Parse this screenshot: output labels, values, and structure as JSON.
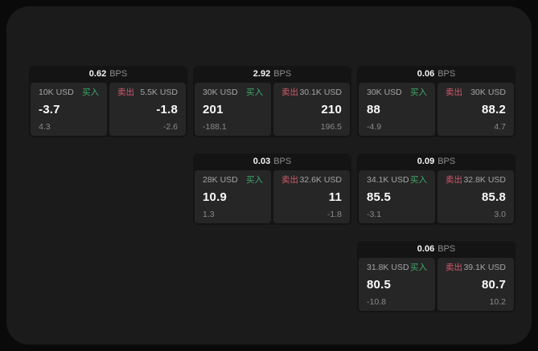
{
  "labels": {
    "bps": "BPS",
    "buy": "买入",
    "sell": "卖出"
  },
  "colors": {
    "buy_green": "#3fa96a",
    "sell_red": "#d25a6c",
    "panel_bg": "#1b1b1b",
    "card_bg": "#141414",
    "subpanel_bg": "#262626"
  },
  "cards": [
    {
      "bps": "0.62",
      "buy": {
        "amount": "10K USD",
        "value": "-3.7",
        "delta": "4.3"
      },
      "sell": {
        "amount": "5.5K USD",
        "value": "-1.8",
        "delta": "-2.6"
      }
    },
    {
      "bps": "2.92",
      "buy": {
        "amount": "30K USD",
        "value": "201",
        "delta": "-188.1"
      },
      "sell": {
        "amount": "30.1K USD",
        "value": "210",
        "delta": "196.5"
      }
    },
    {
      "bps": "0.06",
      "buy": {
        "amount": "30K USD",
        "value": "88",
        "delta": "-4.9"
      },
      "sell": {
        "amount": "30K USD",
        "value": "88.2",
        "delta": "4.7"
      }
    },
    {
      "bps": "0.03",
      "buy": {
        "amount": "28K USD",
        "value": "10.9",
        "delta": "1.3"
      },
      "sell": {
        "amount": "32.6K USD",
        "value": "11",
        "delta": "-1.8"
      }
    },
    {
      "bps": "0.09",
      "buy": {
        "amount": "34.1K USD",
        "value": "85.5",
        "delta": "-3.1"
      },
      "sell": {
        "amount": "32.8K USD",
        "value": "85.8",
        "delta": "3.0"
      }
    },
    {
      "bps": "0.06",
      "buy": {
        "amount": "31.8K USD",
        "value": "80.5",
        "delta": "-10.8"
      },
      "sell": {
        "amount": "39.1K USD",
        "value": "80.7",
        "delta": "10.2"
      }
    }
  ]
}
